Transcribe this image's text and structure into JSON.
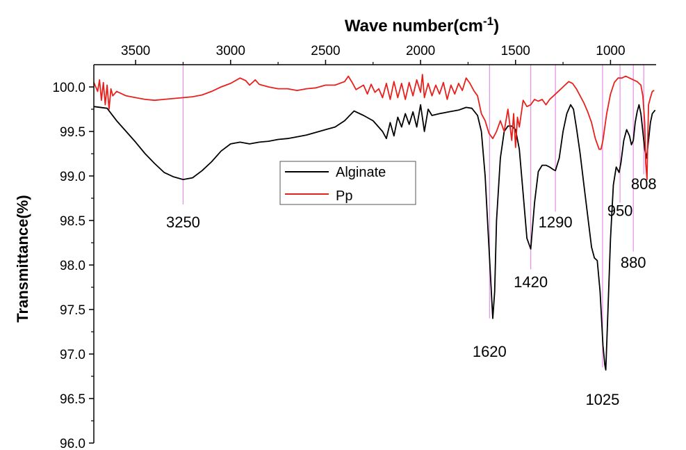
{
  "chart_data": {
    "type": "line",
    "xlabel": "Wave number(cm",
    "xlabel_superscript": "-1",
    "xlabel_suffix": ")",
    "ylabel": "Transmittance(%)",
    "xlim": [
      3720,
      760
    ],
    "ylim": [
      96.0,
      100.25
    ],
    "x_reversed": true,
    "x_ticks": [
      3500,
      3000,
      2500,
      2000,
      1500,
      1000
    ],
    "y_ticks": [
      "96.0",
      "96.5",
      "97.0",
      "97.5",
      "98.0",
      "98.5",
      "99.0",
      "99.5",
      "100.0"
    ],
    "grid": false,
    "legend_position": "center",
    "series": [
      {
        "name": "Alginate",
        "color": "#000000",
        "points": [
          [
            3720,
            99.78
          ],
          [
            3650,
            99.76
          ],
          [
            3600,
            99.62
          ],
          [
            3550,
            99.5
          ],
          [
            3500,
            99.38
          ],
          [
            3450,
            99.25
          ],
          [
            3400,
            99.14
          ],
          [
            3350,
            99.04
          ],
          [
            3300,
            98.99
          ],
          [
            3250,
            98.96
          ],
          [
            3200,
            98.98
          ],
          [
            3150,
            99.06
          ],
          [
            3100,
            99.16
          ],
          [
            3050,
            99.28
          ],
          [
            3000,
            99.36
          ],
          [
            2950,
            99.38
          ],
          [
            2900,
            99.36
          ],
          [
            2850,
            99.38
          ],
          [
            2800,
            99.39
          ],
          [
            2750,
            99.41
          ],
          [
            2700,
            99.42
          ],
          [
            2650,
            99.44
          ],
          [
            2600,
            99.46
          ],
          [
            2550,
            99.49
          ],
          [
            2500,
            99.52
          ],
          [
            2450,
            99.55
          ],
          [
            2400,
            99.62
          ],
          [
            2350,
            99.73
          ],
          [
            2300,
            99.68
          ],
          [
            2250,
            99.62
          ],
          [
            2200,
            99.5
          ],
          [
            2180,
            99.42
          ],
          [
            2160,
            99.6
          ],
          [
            2140,
            99.45
          ],
          [
            2120,
            99.66
          ],
          [
            2100,
            99.55
          ],
          [
            2080,
            99.7
          ],
          [
            2060,
            99.58
          ],
          [
            2040,
            99.72
          ],
          [
            2020,
            99.55
          ],
          [
            2000,
            99.8
          ],
          [
            1980,
            99.5
          ],
          [
            1960,
            99.75
          ],
          [
            1940,
            99.68
          ],
          [
            1900,
            99.7
          ],
          [
            1850,
            99.72
          ],
          [
            1800,
            99.74
          ],
          [
            1760,
            99.77
          ],
          [
            1730,
            99.76
          ],
          [
            1700,
            99.68
          ],
          [
            1680,
            99.5
          ],
          [
            1660,
            99.0
          ],
          [
            1640,
            98.2
          ],
          [
            1625,
            97.6
          ],
          [
            1620,
            97.4
          ],
          [
            1610,
            97.7
          ],
          [
            1600,
            98.5
          ],
          [
            1580,
            99.2
          ],
          [
            1560,
            99.5
          ],
          [
            1540,
            99.56
          ],
          [
            1520,
            99.56
          ],
          [
            1500,
            99.52
          ],
          [
            1480,
            99.3
          ],
          [
            1460,
            98.8
          ],
          [
            1440,
            98.3
          ],
          [
            1420,
            98.18
          ],
          [
            1400,
            98.7
          ],
          [
            1380,
            99.05
          ],
          [
            1360,
            99.12
          ],
          [
            1340,
            99.12
          ],
          [
            1320,
            99.1
          ],
          [
            1300,
            99.07
          ],
          [
            1290,
            99.06
          ],
          [
            1270,
            99.2
          ],
          [
            1250,
            99.5
          ],
          [
            1230,
            99.7
          ],
          [
            1210,
            99.8
          ],
          [
            1195,
            99.75
          ],
          [
            1180,
            99.55
          ],
          [
            1160,
            99.25
          ],
          [
            1140,
            98.9
          ],
          [
            1120,
            98.55
          ],
          [
            1100,
            98.2
          ],
          [
            1085,
            98.08
          ],
          [
            1070,
            98.05
          ],
          [
            1055,
            97.7
          ],
          [
            1040,
            97.1
          ],
          [
            1030,
            96.88
          ],
          [
            1025,
            96.82
          ],
          [
            1015,
            97.4
          ],
          [
            1000,
            98.3
          ],
          [
            985,
            98.9
          ],
          [
            970,
            99.1
          ],
          [
            955,
            99.04
          ],
          [
            945,
            99.15
          ],
          [
            930,
            99.4
          ],
          [
            915,
            99.52
          ],
          [
            900,
            99.45
          ],
          [
            890,
            99.35
          ],
          [
            880,
            99.4
          ],
          [
            870,
            99.6
          ],
          [
            860,
            99.72
          ],
          [
            850,
            99.8
          ],
          [
            840,
            99.7
          ],
          [
            830,
            99.5
          ],
          [
            820,
            99.3
          ],
          [
            810,
            99.2
          ],
          [
            800,
            99.4
          ],
          [
            790,
            99.6
          ],
          [
            780,
            99.7
          ],
          [
            765,
            99.74
          ]
        ]
      },
      {
        "name": "Pp",
        "color": "#e8201c",
        "points": [
          [
            3720,
            100.05
          ],
          [
            3700,
            99.95
          ],
          [
            3690,
            100.08
          ],
          [
            3680,
            99.85
          ],
          [
            3670,
            100.05
          ],
          [
            3660,
            99.8
          ],
          [
            3650,
            100.02
          ],
          [
            3640,
            99.75
          ],
          [
            3630,
            99.98
          ],
          [
            3620,
            99.9
          ],
          [
            3600,
            99.95
          ],
          [
            3550,
            99.9
          ],
          [
            3500,
            99.88
          ],
          [
            3450,
            99.86
          ],
          [
            3400,
            99.85
          ],
          [
            3350,
            99.86
          ],
          [
            3300,
            99.87
          ],
          [
            3250,
            99.88
          ],
          [
            3200,
            99.89
          ],
          [
            3150,
            99.91
          ],
          [
            3100,
            99.95
          ],
          [
            3050,
            100.0
          ],
          [
            3000,
            100.04
          ],
          [
            2950,
            100.1
          ],
          [
            2920,
            100.07
          ],
          [
            2900,
            100.02
          ],
          [
            2870,
            100.08
          ],
          [
            2850,
            100.03
          ],
          [
            2800,
            100.0
          ],
          [
            2750,
            99.98
          ],
          [
            2700,
            99.98
          ],
          [
            2650,
            99.96
          ],
          [
            2600,
            99.98
          ],
          [
            2550,
            99.99
          ],
          [
            2500,
            100.02
          ],
          [
            2450,
            100.02
          ],
          [
            2400,
            100.06
          ],
          [
            2380,
            100.12
          ],
          [
            2360,
            100.05
          ],
          [
            2340,
            99.97
          ],
          [
            2300,
            100.02
          ],
          [
            2280,
            99.92
          ],
          [
            2260,
            100.03
          ],
          [
            2240,
            99.94
          ],
          [
            2220,
            99.98
          ],
          [
            2200,
            99.88
          ],
          [
            2180,
            100.04
          ],
          [
            2160,
            99.86
          ],
          [
            2140,
            100.06
          ],
          [
            2120,
            99.88
          ],
          [
            2100,
            100.04
          ],
          [
            2080,
            99.86
          ],
          [
            2060,
            100.05
          ],
          [
            2040,
            99.9
          ],
          [
            2020,
            100.08
          ],
          [
            2000,
            99.94
          ],
          [
            1990,
            100.14
          ],
          [
            1980,
            99.88
          ],
          [
            1960,
            100.04
          ],
          [
            1940,
            99.9
          ],
          [
            1920,
            100.02
          ],
          [
            1900,
            99.92
          ],
          [
            1880,
            100.05
          ],
          [
            1860,
            99.86
          ],
          [
            1840,
            100.02
          ],
          [
            1820,
            99.92
          ],
          [
            1800,
            100.04
          ],
          [
            1780,
            99.96
          ],
          [
            1760,
            100.1
          ],
          [
            1740,
            100.04
          ],
          [
            1720,
            99.96
          ],
          [
            1700,
            99.9
          ],
          [
            1680,
            99.7
          ],
          [
            1660,
            99.62
          ],
          [
            1640,
            99.48
          ],
          [
            1620,
            99.42
          ],
          [
            1600,
            99.5
          ],
          [
            1580,
            99.62
          ],
          [
            1560,
            99.5
          ],
          [
            1540,
            99.75
          ],
          [
            1520,
            99.4
          ],
          [
            1510,
            99.7
          ],
          [
            1500,
            99.32
          ],
          [
            1490,
            99.66
          ],
          [
            1480,
            99.55
          ],
          [
            1460,
            99.85
          ],
          [
            1440,
            99.78
          ],
          [
            1420,
            99.8
          ],
          [
            1400,
            99.86
          ],
          [
            1380,
            99.84
          ],
          [
            1360,
            99.86
          ],
          [
            1340,
            99.8
          ],
          [
            1320,
            99.86
          ],
          [
            1300,
            99.9
          ],
          [
            1280,
            99.94
          ],
          [
            1260,
            99.98
          ],
          [
            1240,
            100.02
          ],
          [
            1220,
            100.06
          ],
          [
            1200,
            100.04
          ],
          [
            1180,
            99.98
          ],
          [
            1160,
            99.9
          ],
          [
            1140,
            99.82
          ],
          [
            1120,
            99.72
          ],
          [
            1100,
            99.6
          ],
          [
            1080,
            99.42
          ],
          [
            1060,
            99.3
          ],
          [
            1050,
            99.3
          ],
          [
            1040,
            99.4
          ],
          [
            1020,
            99.7
          ],
          [
            1000,
            99.92
          ],
          [
            980,
            100.05
          ],
          [
            960,
            100.1
          ],
          [
            940,
            100.1
          ],
          [
            920,
            100.12
          ],
          [
            900,
            100.1
          ],
          [
            880,
            100.08
          ],
          [
            860,
            100.06
          ],
          [
            850,
            100.04
          ],
          [
            840,
            100.02
          ],
          [
            830,
            99.9
          ],
          [
            820,
            99.6
          ],
          [
            815,
            99.15
          ],
          [
            808,
            98.96
          ],
          [
            805,
            99.3
          ],
          [
            800,
            99.8
          ],
          [
            790,
            99.88
          ],
          [
            780,
            99.95
          ],
          [
            770,
            99.96
          ]
        ]
      }
    ],
    "annotations": [
      {
        "label": "3250",
        "x": 3250,
        "line_top": 100.25,
        "line_bottom": 98.68,
        "text_y": 98.42
      },
      {
        "label": "1620",
        "x": 1637,
        "line_top": 100.25,
        "line_bottom": 97.4,
        "text_y": 96.97
      },
      {
        "label": "1420",
        "x": 1420,
        "line_top": 100.25,
        "line_bottom": 97.95,
        "text_y": 97.75
      },
      {
        "label": "1290",
        "x": 1290,
        "line_top": 100.25,
        "line_bottom": 98.6,
        "text_y": 98.42
      },
      {
        "label": "1025",
        "x": 1042,
        "line_top": 100.25,
        "line_bottom": 96.85,
        "text_y": 96.43
      },
      {
        "label": "950",
        "x": 950,
        "line_top": 100.25,
        "line_bottom": 98.7,
        "text_y": 98.55
      },
      {
        "label": "880",
        "x": 880,
        "line_top": 100.25,
        "line_bottom": 98.15,
        "text_y": 97.97
      },
      {
        "label": "808",
        "x": 825,
        "line_top": 100.25,
        "line_bottom": 99.02,
        "text_y": 98.85
      }
    ],
    "annotation_color": "#e88be8"
  }
}
